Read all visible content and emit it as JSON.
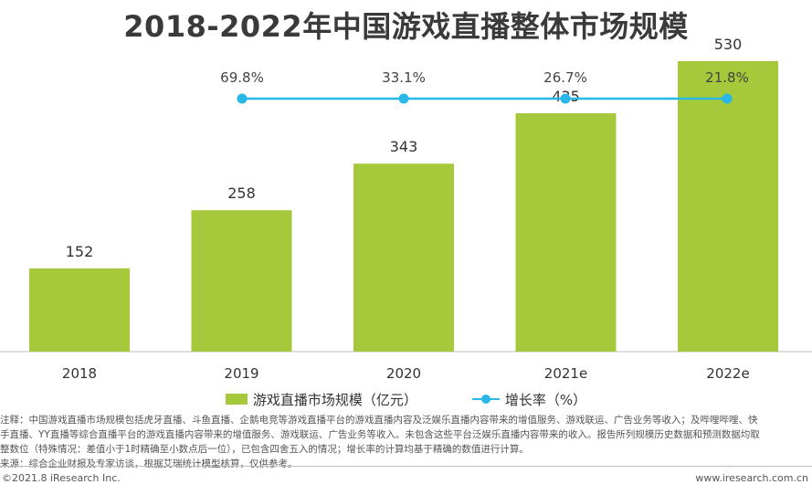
{
  "title": "2018-2022年中国游戏直播整体市场规模",
  "chart_data": {
    "type": "bar",
    "categories": [
      "2018",
      "2019",
      "2020",
      "2021e",
      "2022e"
    ],
    "series": [
      {
        "name": "游戏直播市场规模（亿元）",
        "type": "bar",
        "values": [
          152,
          258,
          343,
          435,
          530
        ],
        "color": "#a5c93a"
      },
      {
        "name": "增长率（%）",
        "type": "line",
        "values": [
          null,
          69.8,
          33.1,
          26.7,
          21.8
        ],
        "labels": [
          "",
          "69.8%",
          "33.1%",
          "26.7%",
          "21.8%"
        ],
        "color": "#29b6e8"
      }
    ],
    "ylim": [
      0,
      600
    ],
    "grid": false,
    "legend_position": "bottom"
  },
  "legend": {
    "bar": "游戏直播市场规模（亿元）",
    "line": "增长率（%）"
  },
  "notes": [
    "注释：中国游戏直播市场规模包括虎牙直播、斗鱼直播、企鹅电竞等游戏直播平台的游戏直播内容及泛娱乐直播内容带来的增值服务、游戏联运、广告业务等收入；及哔哩哔哩、快",
    "手直播、YY直播等综合直播平台的游戏直播内容带来的增值服务、游戏联运、广告业务等收入。未包含这些平台泛娱乐直播内容带来的收入。报告所列规模历史数据和预测数据均取",
    "整数位（特殊情况：差值小于1时精确至小数点后一位），已包含四舍五入的情况；增长率的计算均基于精确的数值进行计算。",
    "来源：综合企业财报及专家访谈，根据艾瑞统计模型核算，仅供参考。"
  ],
  "footer": {
    "copyright": "©2021.8 iResearch Inc.",
    "site": "www.iresearch.com.cn"
  }
}
